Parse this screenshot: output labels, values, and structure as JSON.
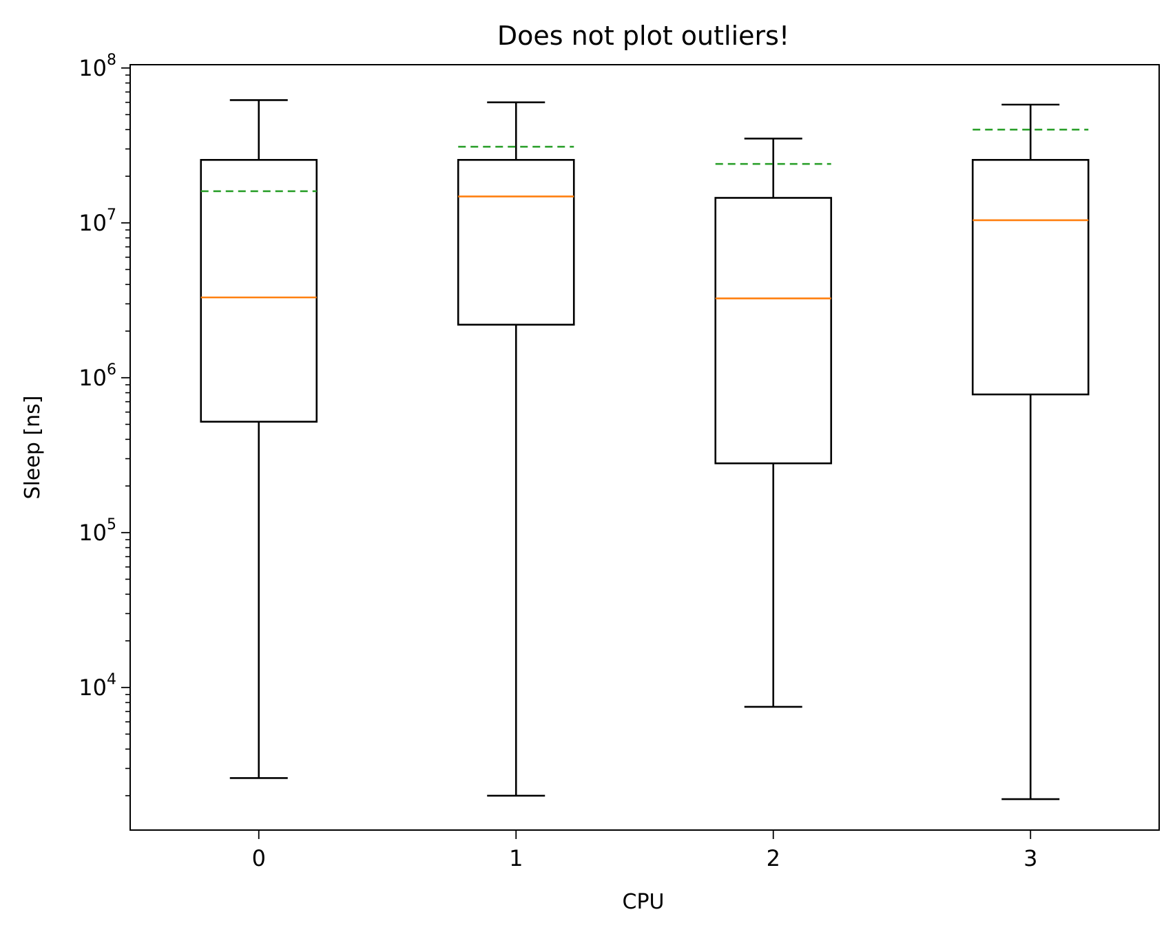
{
  "chart_data": {
    "type": "boxplot",
    "title": "Does not plot outliers!",
    "xlabel": "CPU",
    "ylabel": "Sleep [ns]",
    "yscale": "log",
    "ylim": [
      1200,
      105000000
    ],
    "categories": [
      "0",
      "1",
      "2",
      "3"
    ],
    "y_ticks": [
      {
        "value": 10000,
        "base": "10",
        "exp": "4"
      },
      {
        "value": 100000,
        "base": "10",
        "exp": "5"
      },
      {
        "value": 1000000,
        "base": "10",
        "exp": "6"
      },
      {
        "value": 10000000,
        "base": "10",
        "exp": "7"
      },
      {
        "value": 100000000,
        "base": "10",
        "exp": "8"
      }
    ],
    "boxes": [
      {
        "label": "0",
        "whisker_low": 2600,
        "q1": 520000,
        "median": 3300000,
        "q3": 25500000,
        "whisker_high": 62000000,
        "mean": 16000000
      },
      {
        "label": "1",
        "whisker_low": 2000,
        "q1": 2200000,
        "median": 14800000,
        "q3": 25500000,
        "whisker_high": 60000000,
        "mean": 31000000
      },
      {
        "label": "2",
        "whisker_low": 7500,
        "q1": 280000,
        "median": 3250000,
        "q3": 14500000,
        "whisker_high": 35000000,
        "mean": 24000000
      },
      {
        "label": "3",
        "whisker_low": 1900,
        "q1": 780000,
        "median": 10400000,
        "q3": 25500000,
        "whisker_high": 58000000,
        "mean": 40000000
      }
    ],
    "colors": {
      "box": "#000000",
      "median": "#ff7f0e",
      "mean": "#2ca02c"
    },
    "show_outliers": false,
    "grid": false,
    "legend": "none"
  }
}
